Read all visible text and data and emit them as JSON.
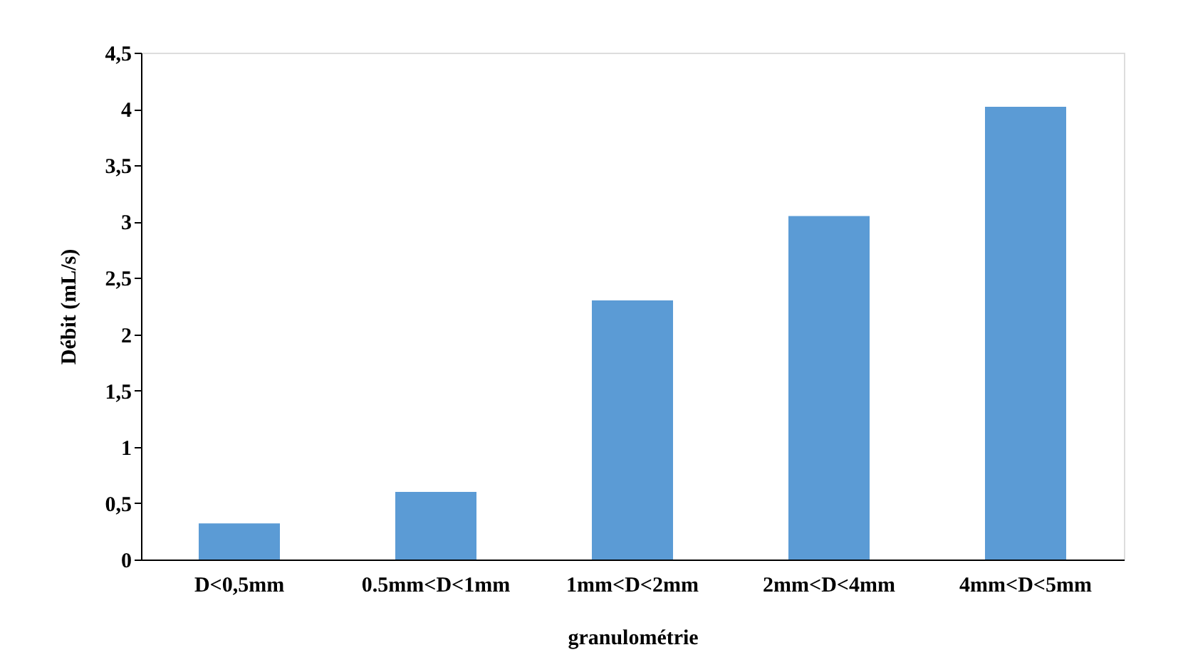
{
  "chart_data": {
    "type": "bar",
    "xlabel": "granulométrie",
    "ylabel": "Débit (mL/s)",
    "categories": [
      "D<0,5mm",
      "0.5mm<D<1mm",
      "1mm<D<2mm",
      "2mm<D<4mm",
      "4mm<D<5mm"
    ],
    "values": [
      0.32,
      0.6,
      2.3,
      3.05,
      4.02
    ],
    "color": "#5b9bd5",
    "ylim": [
      0,
      4.5
    ],
    "yticks": [
      0,
      {
        "value": 0.5,
        "label": "0,5"
      },
      1,
      {
        "value": 1.5,
        "label": "1,5"
      },
      2,
      {
        "value": 2.5,
        "label": "2,5"
      },
      3,
      {
        "value": 3.5,
        "label": "3,5"
      },
      4,
      {
        "value": 4.5,
        "label": "4,5"
      }
    ],
    "grid": false
  }
}
